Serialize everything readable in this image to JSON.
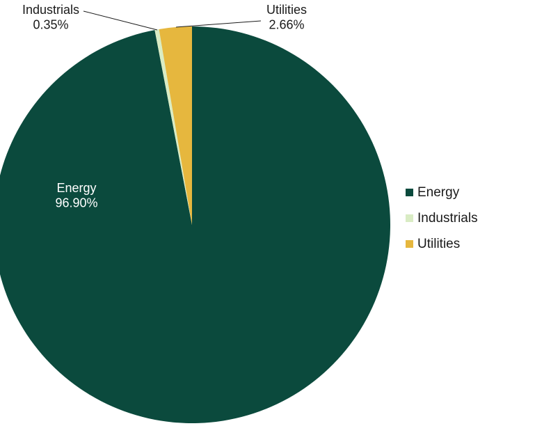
{
  "chart_data": {
    "type": "pie",
    "title": "",
    "slices": [
      {
        "name": "Energy",
        "value": 96.9,
        "label": "96.90%",
        "color": "#0b4a3d"
      },
      {
        "name": "Industrials",
        "value": 0.35,
        "label": "0.35%",
        "color": "#d9ecc4"
      },
      {
        "name": "Utilities",
        "value": 2.66,
        "label": "2.66%",
        "color": "#e6b73e"
      }
    ],
    "start_angle_deg": 0,
    "direction": "clockwise",
    "legend_position": "right"
  },
  "legend": {
    "items": [
      {
        "label": "Energy",
        "color": "#0b4a3d"
      },
      {
        "label": "Industrials",
        "color": "#d9ecc4"
      },
      {
        "label": "Utilities",
        "color": "#e6b73e"
      }
    ]
  }
}
